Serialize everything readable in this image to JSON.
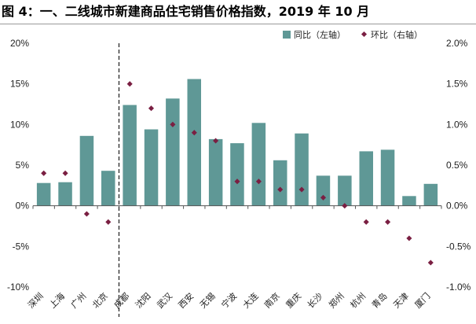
{
  "title": "图 4：一、二线城市新建商品住宅销售价格指数，2019 年 10 月",
  "legend": {
    "bar_label": "同比（左轴）",
    "point_label": "环比（右轴）"
  },
  "colors": {
    "bar": "#5f9896",
    "point": "#7a1f42",
    "divider": "#333333",
    "axis": "#555555"
  },
  "chart_data": {
    "type": "bar",
    "categories": [
      "深圳",
      "上海",
      "广州",
      "北京",
      "成都",
      "沈阳",
      "武汉",
      "西安",
      "无锡",
      "宁波",
      "大连",
      "南京",
      "重庆",
      "长沙",
      "郑州",
      "杭州",
      "青岛",
      "天津",
      "厦门"
    ],
    "series": [
      {
        "name": "同比（左轴）",
        "axis": "left",
        "type": "bar",
        "values": [
          2.8,
          2.9,
          8.6,
          4.3,
          12.4,
          9.4,
          13.2,
          15.6,
          8.2,
          7.7,
          10.2,
          5.6,
          8.9,
          3.7,
          3.7,
          6.7,
          6.9,
          1.2,
          2.7
        ]
      },
      {
        "name": "环比（右轴）",
        "axis": "right",
        "type": "scatter",
        "values": [
          0.4,
          0.4,
          -0.1,
          -0.2,
          1.5,
          1.2,
          1.0,
          0.9,
          0.8,
          0.3,
          0.3,
          0.2,
          0.2,
          0.1,
          0.0,
          -0.2,
          -0.2,
          -0.4,
          -0.7
        ]
      }
    ],
    "left_axis": {
      "ylim": [
        -10,
        20
      ],
      "ticks": [
        "-10%",
        "-5%",
        "0%",
        "5%",
        "10%",
        "15%",
        "20%"
      ]
    },
    "right_axis": {
      "ylim": [
        -1.0,
        2.0
      ],
      "ticks": [
        "-1.0%",
        "-0.5%",
        "0.0%",
        "0.5%",
        "1.0%",
        "1.5%",
        "2.0%"
      ]
    },
    "divider_after_index": 3,
    "grid": false,
    "legend_position": "top-right"
  }
}
